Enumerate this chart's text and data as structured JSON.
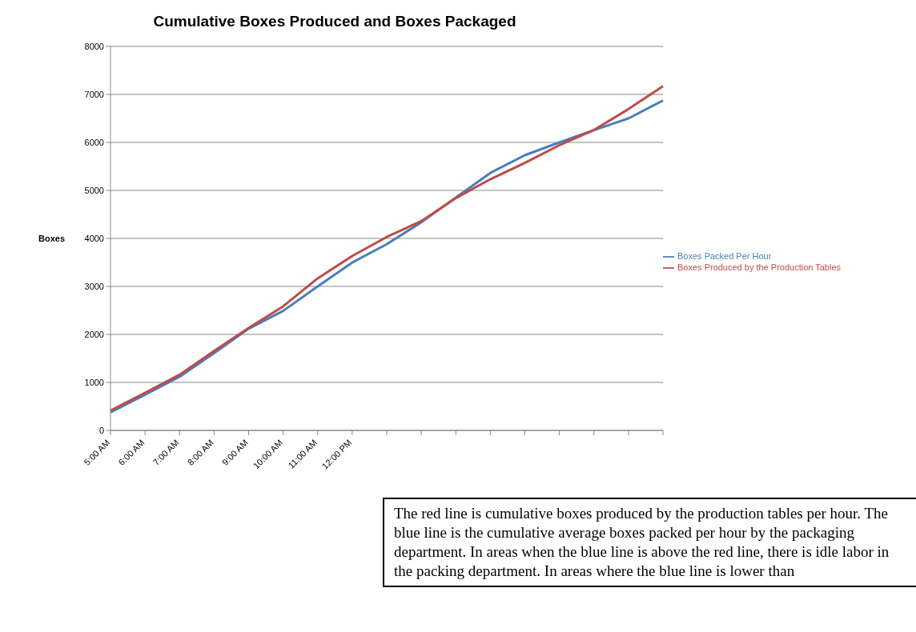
{
  "chart_data": {
    "type": "line",
    "title": "Cumulative Boxes Produced and Boxes Packaged",
    "ylabel": "Boxes",
    "categories": [
      "5:00 AM",
      "6:00 AM",
      "7:00 AM",
      "8:00 AM",
      "9:00 AM",
      "10:00 AM",
      "11:00 AM",
      "12:00 PM",
      null,
      null,
      null,
      null,
      null,
      null,
      null,
      null,
      null
    ],
    "series": [
      {
        "name": "Boxes Packed Per Hour",
        "color": "#4a7ebb",
        "values": [
          376,
          742,
          1118,
          1610,
          2119,
          2490,
          2999,
          3497,
          3880,
          4335,
          4850,
          5364,
          5733,
          6000,
          6257,
          6500,
          6874
        ]
      },
      {
        "name": "Boxes Produced by the Production Tables",
        "color": "#be4b48",
        "values": [
          413,
          784,
          1160,
          1653,
          2135,
          2585,
          3168,
          3634,
          4030,
          4360,
          4840,
          5233,
          5573,
          5942,
          6257,
          6694,
          7170
        ]
      }
    ],
    "ylim": [
      0,
      8000
    ],
    "yticks": [
      0,
      1000,
      2000,
      3000,
      4000,
      5000,
      6000,
      7000,
      8000
    ],
    "grid": "y",
    "legend": "right",
    "marker": "none",
    "annotations": [
      "The red line is cumulative boxes produced by the production tables per hour. The blue line is the cumulative average boxes packed per hour by the packaging department. In areas when the blue line is above the red line, there is idle labor in the packing department. In areas where the blue line is lower than"
    ]
  }
}
